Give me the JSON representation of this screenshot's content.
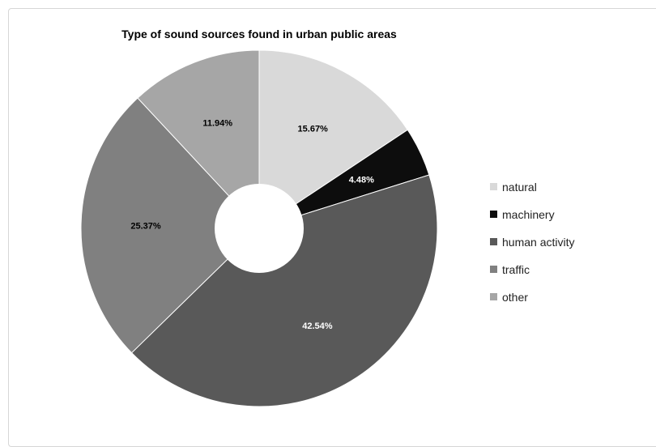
{
  "chart_data": {
    "type": "pie",
    "title": "Type of sound sources found in urban public areas",
    "donut": true,
    "legend_position": "right",
    "slices": [
      {
        "label": "natural",
        "value": 15.67,
        "display": "15.67%",
        "color": "#d9d9d9",
        "label_color": "#000000"
      },
      {
        "label": "machinery",
        "value": 4.48,
        "display": "4.48%",
        "color": "#0d0d0d",
        "label_color": "#ffffff"
      },
      {
        "label": "human activity",
        "value": 42.54,
        "display": "42.54%",
        "color": "#595959",
        "label_color": "#ffffff"
      },
      {
        "label": "traffic",
        "value": 25.37,
        "display": "25.37%",
        "color": "#808080",
        "label_color": "#000000"
      },
      {
        "label": "other",
        "value": 11.94,
        "display": "11.94%",
        "color": "#a6a6a6",
        "label_color": "#000000"
      }
    ]
  }
}
